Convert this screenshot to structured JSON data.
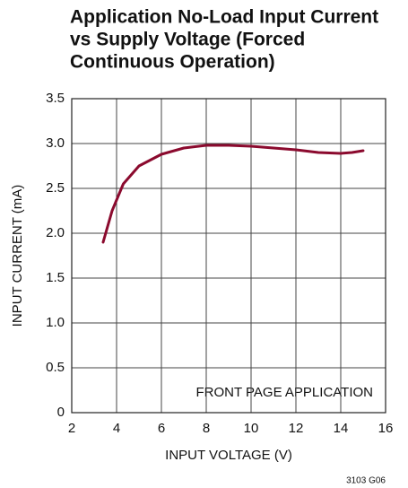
{
  "chart_data": {
    "type": "line",
    "title": [
      "Application No-Load Input Current",
      "vs Supply Voltage (Forced",
      "Continuous Operation)"
    ],
    "xlabel": "INPUT VOLTAGE (V)",
    "ylabel": "INPUT CURRENT (mA)",
    "annotation": "FRONT PAGE APPLICATION",
    "figure_id": "3103 G06",
    "x": [
      3.4,
      3.8,
      4.3,
      5,
      6,
      7,
      8,
      9,
      10,
      11,
      12,
      13,
      14,
      14.5,
      15
    ],
    "series": [
      {
        "color": "#8b0a2e",
        "values": [
          1.9,
          2.25,
          2.55,
          2.75,
          2.88,
          2.95,
          2.98,
          2.98,
          2.97,
          2.95,
          2.93,
          2.9,
          2.89,
          2.9,
          2.92
        ]
      }
    ],
    "xlim": [
      2,
      16
    ],
    "xticks": [
      2,
      4,
      6,
      8,
      10,
      12,
      14,
      16
    ],
    "ylim": [
      0,
      3.5
    ],
    "yticks": [
      0,
      0.5,
      {
        "value": 1,
        "label": "1.0"
      },
      1.5,
      {
        "value": 2,
        "label": "2.0"
      },
      2.5,
      {
        "value": 3,
        "label": "3.0"
      },
      3.5
    ],
    "grid": true
  }
}
